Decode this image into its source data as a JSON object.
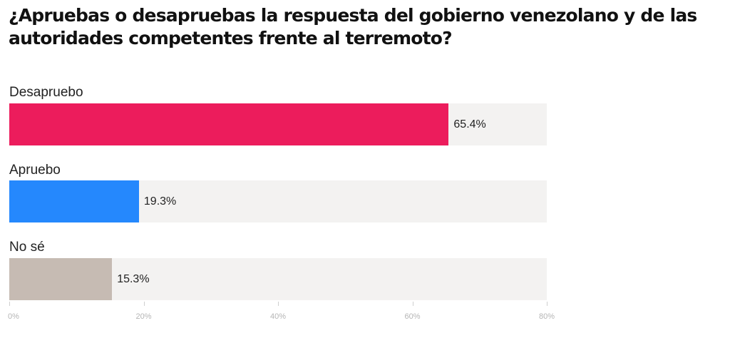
{
  "chart_data": {
    "type": "bar",
    "orientation": "horizontal",
    "title": "¿Apruebas o desapruebas la respuesta del gobierno venezolano y de las autoridades competentes frente al terremoto?",
    "categories": [
      "Desapruebo",
      "Apruebo",
      "No sé"
    ],
    "values": [
      65.4,
      19.3,
      15.3
    ],
    "value_labels": [
      "65.4%",
      "19.3%",
      "15.3%"
    ],
    "colors": [
      "#ec1c5c",
      "#2588fd",
      "#c6bbb3"
    ],
    "track_color": "#f3f2f1",
    "xlim": [
      0,
      80
    ],
    "x_ticks": [
      0,
      20,
      40,
      60,
      80
    ],
    "x_tick_labels": [
      "0%",
      "20%",
      "40%",
      "60%",
      "80%"
    ],
    "grid": false,
    "legend": "none"
  }
}
